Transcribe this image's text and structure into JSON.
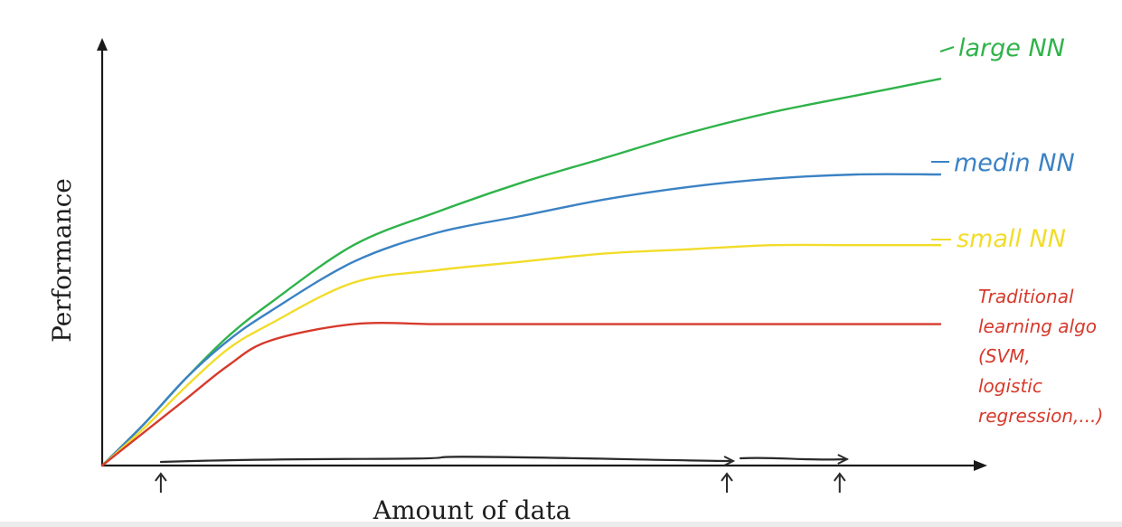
{
  "chart_data": {
    "type": "line",
    "xlabel": "Amount of data",
    "ylabel": "Performance",
    "x": [
      0,
      0.05,
      0.1,
      0.15,
      0.2,
      0.3,
      0.4,
      0.5,
      0.6,
      0.7,
      0.8,
      0.9,
      1.0
    ],
    "xlim": [
      0,
      1.0
    ],
    "ylim": [
      0,
      1.0
    ],
    "grid": false,
    "legend": "inline labels at right end of each curve",
    "series": [
      {
        "name": "large NN",
        "color": "#2fb34a",
        "values": [
          0.0,
          0.1,
          0.21,
          0.31,
          0.39,
          0.53,
          0.61,
          0.68,
          0.74,
          0.8,
          0.85,
          0.89,
          0.93
        ]
      },
      {
        "name": "medin NN",
        "color": "#3b82c4",
        "values": [
          0.0,
          0.1,
          0.21,
          0.3,
          0.37,
          0.49,
          0.56,
          0.6,
          0.64,
          0.67,
          0.69,
          0.7,
          0.7
        ]
      },
      {
        "name": "small NN",
        "color": "#f2dc2a",
        "values": [
          0.0,
          0.09,
          0.19,
          0.28,
          0.34,
          0.44,
          0.47,
          0.49,
          0.51,
          0.52,
          0.53,
          0.53,
          0.53
        ]
      },
      {
        "name": "Traditional learning algo (SVM, logistic regression,...)",
        "color": "#d63a2c",
        "values": [
          0.0,
          0.08,
          0.16,
          0.24,
          0.3,
          0.34,
          0.34,
          0.34,
          0.34,
          0.34,
          0.34,
          0.34,
          0.34
        ]
      }
    ],
    "labels": {
      "large": "large NN",
      "medium": "medin NN",
      "small": "small NN",
      "traditional": [
        "Traditional",
        "learning algo",
        "(SVM,",
        "logistic",
        "regression,...)"
      ]
    },
    "annotations": {
      "data_range_marks": [
        {
          "x": 0.07
        },
        {
          "x": 0.74
        },
        {
          "x": 0.88
        }
      ]
    }
  },
  "colors": {
    "axis": "#1a1a1a",
    "annotation": "#2a2a2a"
  }
}
